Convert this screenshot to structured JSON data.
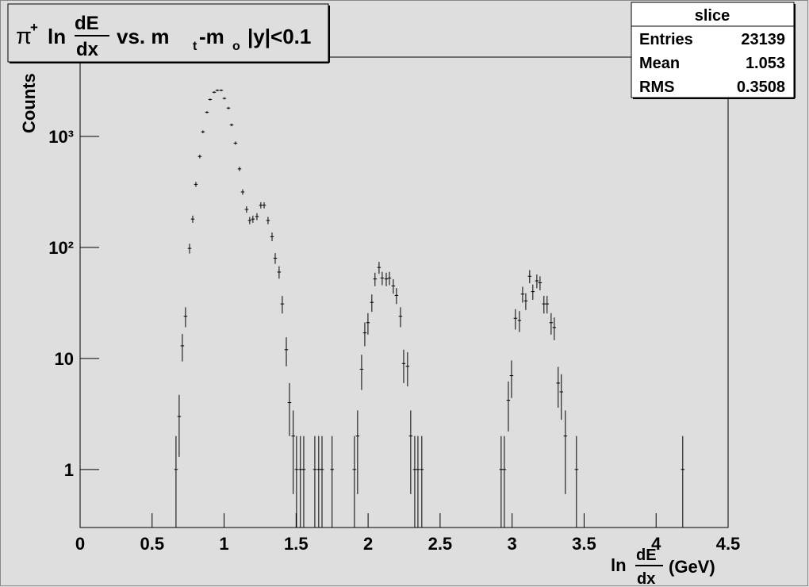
{
  "chart_data": {
    "type": "errorbar",
    "title": {
      "pi": "π",
      "charge": "+",
      "ln": "ln",
      "num": "dE",
      "den": "dx",
      "mid": "vs. m",
      "sub1": "t",
      "minus": "-m",
      "sub2": "o",
      "tail": "|y|<0.1"
    },
    "x_label": {
      "ln": "ln",
      "num": "dE",
      "den": "dx",
      "unit": "(GeV)"
    },
    "y_label": "Counts",
    "log_y": true,
    "xlim": [
      0,
      4.5
    ],
    "ylim": [
      0.3,
      5180
    ],
    "xticks": [
      0,
      0.5,
      1,
      1.5,
      2,
      2.5,
      3,
      3.5,
      4,
      4.5
    ],
    "yticks": [
      1,
      10,
      {
        "value": 100,
        "label": "10²"
      },
      {
        "value": 1000,
        "label": "10³"
      }
    ],
    "bin_width": 0.025,
    "color": "#000000",
    "x": [
      0.666,
      0.688,
      0.71,
      0.732,
      0.76,
      0.782,
      0.804,
      0.831,
      0.853,
      0.881,
      0.903,
      0.931,
      0.953,
      0.98,
      1.002,
      1.03,
      1.052,
      1.079,
      1.107,
      1.129,
      1.156,
      1.178,
      1.2,
      1.228,
      1.255,
      1.278,
      1.305,
      1.333,
      1.355,
      1.382,
      1.404,
      1.432,
      1.454,
      1.48,
      1.503,
      1.53,
      1.553,
      1.63,
      1.657,
      1.68,
      1.75,
      1.905,
      1.927,
      1.955,
      1.977,
      1.999,
      2.026,
      2.048,
      2.076,
      2.098,
      2.126,
      2.148,
      2.175,
      2.197,
      2.225,
      2.247,
      2.274,
      2.296,
      2.324,
      2.346,
      2.373,
      2.924,
      2.946,
      2.974,
      2.996,
      3.023,
      3.051,
      3.073,
      3.095,
      3.122,
      3.144,
      3.172,
      3.194,
      3.221,
      3.243,
      3.271,
      3.293,
      3.32,
      3.342,
      3.37,
      3.447,
      4.185
    ],
    "values": [
      1,
      3,
      13,
      24,
      98,
      180,
      370,
      660,
      1100,
      1650,
      2150,
      2500,
      2600,
      2600,
      2200,
      1800,
      1270,
      870,
      510,
      316,
      220,
      175,
      180,
      190,
      240,
      240,
      175,
      125,
      80,
      60,
      31,
      12,
      4,
      2,
      1,
      1,
      1,
      1,
      1,
      1,
      1,
      1,
      2,
      8,
      17,
      21,
      32,
      52,
      66,
      53,
      52,
      53,
      45,
      37,
      24,
      9,
      8.5,
      2,
      1,
      1,
      1,
      1,
      1,
      4.2,
      7,
      23,
      22,
      38,
      33,
      55,
      40,
      50,
      48,
      31,
      31,
      21,
      19,
      6,
      5,
      2,
      1,
      1
    ],
    "errors": [
      1,
      1.7,
      3.6,
      4.9,
      9.9,
      13.4,
      19.2,
      25.7,
      33.2,
      40.6,
      46.4,
      50,
      51,
      51,
      46.9,
      42.4,
      35.6,
      29.5,
      22.6,
      17.8,
      14.8,
      13.2,
      13.4,
      13.8,
      15.5,
      15.5,
      13.2,
      11.2,
      8.9,
      7.7,
      5.6,
      3.5,
      2,
      1.4,
      1,
      1,
      1,
      1,
      1,
      1,
      1,
      1,
      1.4,
      2.8,
      4.1,
      4.6,
      5.7,
      7.2,
      8.1,
      7.3,
      7.2,
      7.3,
      6.7,
      6.1,
      4.9,
      3,
      2.9,
      1.4,
      1,
      1,
      1,
      1,
      1,
      2,
      2.6,
      4.8,
      4.7,
      6.2,
      5.7,
      7.4,
      6.3,
      7.1,
      6.9,
      5.6,
      5.6,
      4.6,
      4.4,
      2.4,
      2.2,
      1.4,
      1,
      1
    ],
    "stats": {
      "name": "slice",
      "entries_label": "Entries",
      "entries": 23139,
      "mean_label": "Mean",
      "mean": 1.053,
      "rms_label": "RMS",
      "rms": 0.3508
    }
  }
}
